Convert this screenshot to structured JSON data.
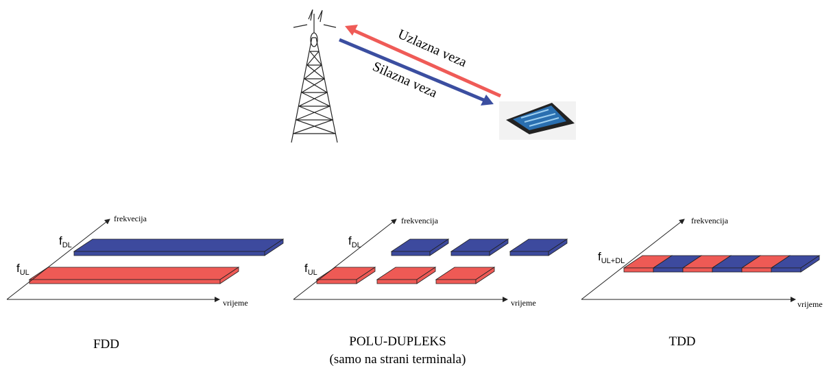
{
  "top": {
    "uplink_label": "Uzlazna veza",
    "downlink_label": "Silazna veza"
  },
  "diagrams": [
    {
      "freq_axis": "frekvecija",
      "time_axis": "vrijeme",
      "labels": [
        {
          "main": "f",
          "sub": "DL"
        },
        {
          "main": "f",
          "sub": "UL"
        }
      ],
      "caption": [
        "FDD"
      ]
    },
    {
      "freq_axis": "frekvencija",
      "time_axis": "vrijeme",
      "labels": [
        {
          "main": "f",
          "sub": "DL"
        },
        {
          "main": "f",
          "sub": "UL"
        }
      ],
      "caption": [
        "POLU-DUPLEKS",
        "(samo na strani terminala)"
      ]
    },
    {
      "freq_axis": "frekvencija",
      "time_axis": "vrijeme",
      "labels": [
        {
          "main": "f",
          "sub": "UL+DL"
        }
      ],
      "caption": [
        "TDD"
      ]
    }
  ]
}
